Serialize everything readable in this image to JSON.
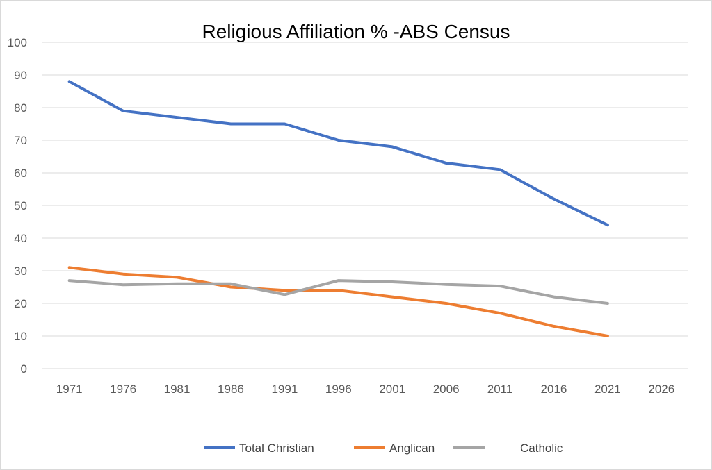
{
  "chart_data": {
    "type": "line",
    "title": "Religious Affiliation % -ABS Census",
    "xlabel": "",
    "ylabel": "",
    "categories": [
      "1971",
      "1976",
      "1981",
      "1986",
      "1991",
      "1996",
      "2001",
      "2006",
      "2011",
      "2016",
      "2021",
      "2026"
    ],
    "ylim": [
      0,
      100
    ],
    "yticks": [
      "0",
      "10",
      "20",
      "30",
      "40",
      "50",
      "60",
      "70",
      "80",
      "90",
      "100"
    ],
    "grid": true,
    "legend_position": "bottom",
    "series": [
      {
        "name": "Total Christian",
        "color": "#4472c4",
        "values": [
          88,
          79,
          77,
          75,
          75,
          70,
          68,
          63,
          61,
          52,
          44,
          null
        ]
      },
      {
        "name": "Anglican",
        "color": "#ed7d31",
        "values": [
          31,
          29,
          28,
          25,
          24,
          24,
          22,
          20,
          17,
          13,
          10,
          null
        ]
      },
      {
        "name": "Catholic",
        "color": "#a5a5a5",
        "values": [
          27,
          25.7,
          26,
          26,
          22.7,
          27,
          26.6,
          25.8,
          25.3,
          22,
          20,
          null
        ]
      }
    ]
  }
}
